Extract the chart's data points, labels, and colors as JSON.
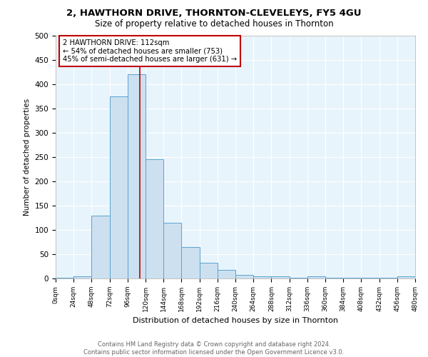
{
  "title": "2, HAWTHORN DRIVE, THORNTON-CLEVELEYS, FY5 4GU",
  "subtitle": "Size of property relative to detached houses in Thornton",
  "xlabel": "Distribution of detached houses by size in Thornton",
  "ylabel": "Number of detached properties",
  "footer_line1": "Contains HM Land Registry data © Crown copyright and database right 2024.",
  "footer_line2": "Contains public sector information licensed under the Open Government Licence v3.0.",
  "annotation_title": "2 HAWTHORN DRIVE: 112sqm",
  "annotation_line2": "← 54% of detached houses are smaller (753)",
  "annotation_line3": "45% of semi-detached houses are larger (631) →",
  "bin_edges": [
    0,
    24,
    48,
    72,
    96,
    120,
    144,
    168,
    192,
    216,
    240,
    264,
    288,
    312,
    336,
    360,
    384,
    408,
    432,
    456,
    480
  ],
  "bar_values": [
    2,
    5,
    130,
    375,
    420,
    245,
    115,
    65,
    33,
    18,
    8,
    5,
    5,
    2,
    5,
    2,
    2,
    2,
    2,
    5
  ],
  "bar_color": "#cce0f0",
  "bar_edge_color": "#5ba3d0",
  "vline_x": 112,
  "vline_color": "#c00000",
  "background_color": "#e8f4fb",
  "grid_color": "white",
  "ylim": [
    0,
    500
  ],
  "yticks": [
    0,
    50,
    100,
    150,
    200,
    250,
    300,
    350,
    400,
    450,
    500
  ],
  "figwidth": 6.0,
  "figheight": 5.0,
  "dpi": 100
}
